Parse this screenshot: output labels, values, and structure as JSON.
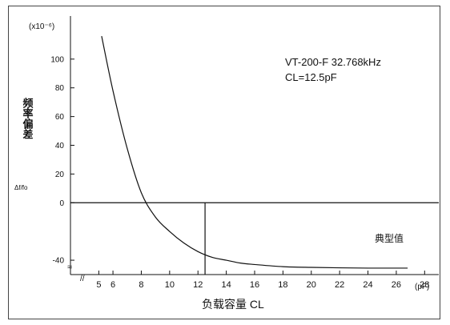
{
  "chart_data": {
    "type": "line",
    "title_lines": [
      "VT-200-F 32.768kHz",
      "CL=12.5pF"
    ],
    "ylabel_cjk": "频率偏差",
    "ylabel_sym": "Δf/fo",
    "y_unit": "(x10⁻⁶)",
    "x_unit": "(pF)",
    "xlabel": "负载容量 CL",
    "series_label": "典型值",
    "x_tick_labels": [
      "5",
      "6",
      "8",
      "10",
      "12",
      "14",
      "16",
      "18",
      "20",
      "22",
      "24",
      "26",
      "28"
    ],
    "y_tick_labels": [
      "100",
      "80",
      "60",
      "40",
      "20",
      "0",
      "-40"
    ],
    "xlim": [
      3,
      29
    ],
    "ylim": [
      -50,
      130
    ],
    "marker_x": 12.5,
    "x": [
      5.2,
      6,
      7,
      8,
      9,
      10,
      11,
      12,
      13,
      14,
      15,
      16,
      18,
      20,
      22,
      24,
      26.8
    ],
    "y": [
      116,
      78,
      38,
      7,
      -10,
      -20,
      -28,
      -34,
      -38,
      -40,
      -42,
      -43,
      -44.5,
      -45,
      -45.3,
      -45.5,
      -45.5
    ]
  }
}
